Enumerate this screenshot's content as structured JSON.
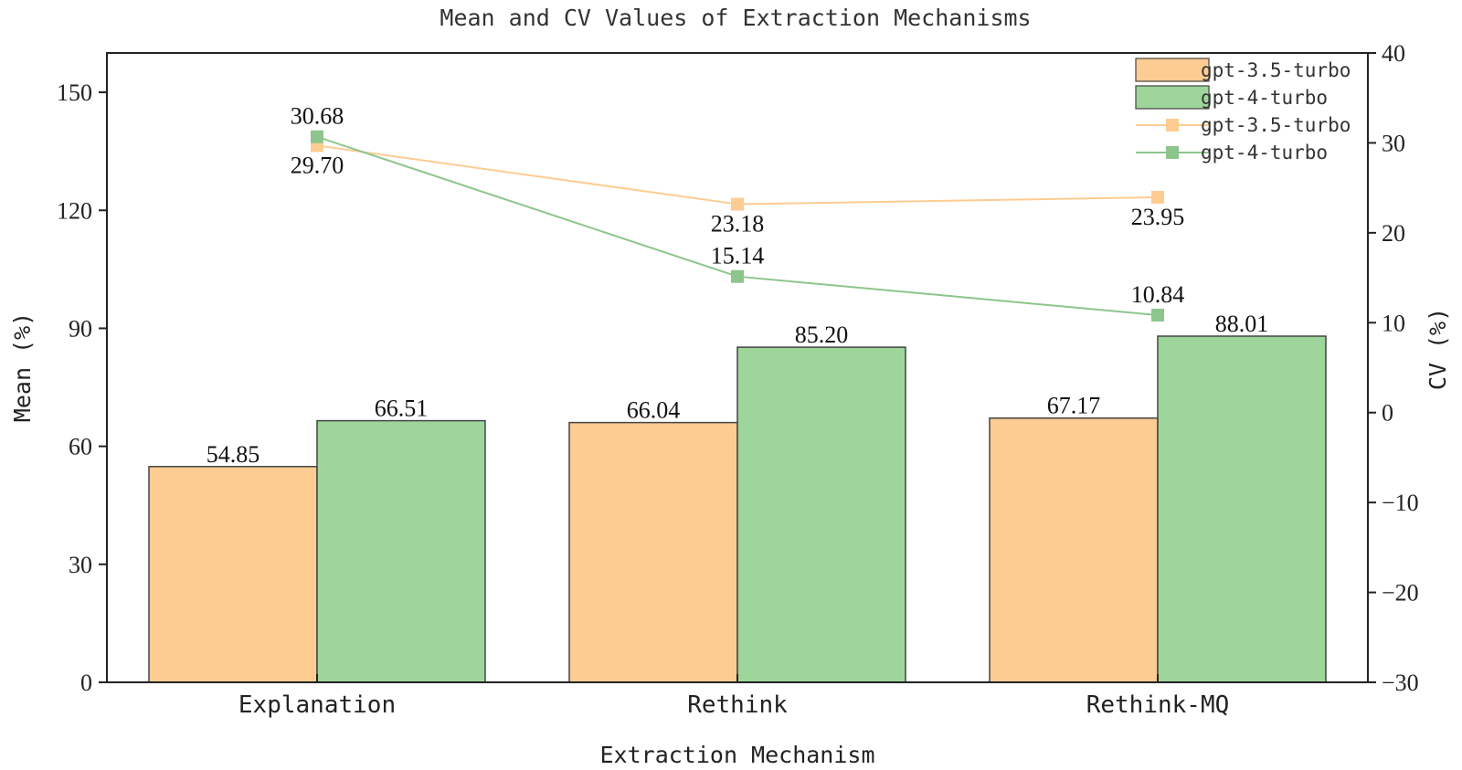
{
  "chart_data": {
    "type": "bar",
    "title": "Mean and CV Values of Extraction Mechanisms",
    "xlabel": "Extraction Mechanism",
    "ylabel": "Mean (%)",
    "y2label": "CV (%)",
    "categories": [
      "Explanation",
      "Rethink",
      "Rethink-MQ"
    ],
    "ylim": [
      0,
      160
    ],
    "yticks": [
      0,
      30,
      60,
      90,
      120,
      150
    ],
    "y2lim": [
      -30,
      40
    ],
    "y2ticks": [
      -30,
      -20,
      -10,
      0,
      10,
      20,
      30,
      40
    ],
    "grid": false,
    "legend_position": "top-right",
    "bar_series": [
      {
        "name": "gpt-3.5-turbo",
        "values": [
          54.85,
          66.04,
          67.17
        ],
        "labels": [
          "54.85",
          "66.04",
          "67.17"
        ],
        "color": "#FDCC92"
      },
      {
        "name": "gpt-4-turbo",
        "values": [
          66.51,
          85.2,
          88.01
        ],
        "labels": [
          "66.51",
          "85.20",
          "88.01"
        ],
        "color": "#9ED59B"
      }
    ],
    "line_series": [
      {
        "name": "gpt-3.5-turbo",
        "values": [
          29.7,
          23.18,
          23.95
        ],
        "labels": [
          "29.70",
          "23.18",
          "23.95"
        ],
        "color": "#FDCC92"
      },
      {
        "name": "gpt-4-turbo",
        "values": [
          30.68,
          15.14,
          10.84
        ],
        "labels": [
          "30.68",
          "15.14",
          "10.84"
        ],
        "color": "#8DC58C"
      }
    ]
  }
}
